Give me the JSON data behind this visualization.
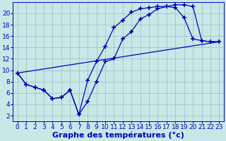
{
  "title": "Graphe des températures (°c)",
  "background_color": "#c8e8e8",
  "grid_color": "#a0c4c8",
  "line_color": "#0000bb",
  "marker": "+",
  "markersize": 4,
  "markeredgewidth": 1.2,
  "linewidth": 0.9,
  "xlim": [
    -0.5,
    23.5
  ],
  "ylim": [
    1,
    22
  ],
  "xticks": [
    0,
    1,
    2,
    3,
    4,
    5,
    6,
    7,
    8,
    9,
    10,
    11,
    12,
    13,
    14,
    15,
    16,
    17,
    18,
    19,
    20,
    21,
    22,
    23
  ],
  "yticks": [
    2,
    4,
    6,
    8,
    10,
    12,
    14,
    16,
    18,
    20
  ],
  "xlabel_fontsize": 8,
  "tick_fontsize": 6.5,
  "line1_x": [
    0,
    1,
    2,
    3,
    4,
    5,
    6,
    7,
    8,
    9,
    10,
    11,
    12,
    13,
    14,
    15,
    16,
    17,
    18,
    19,
    20,
    21,
    22,
    23
  ],
  "line1_y": [
    9.5,
    7.5,
    7.0,
    6.5,
    5.0,
    5.2,
    6.5,
    2.2,
    4.5,
    8.0,
    11.5,
    12.0,
    15.5,
    16.8,
    19.0,
    19.8,
    20.8,
    21.2,
    21.5,
    21.5,
    21.2,
    15.2,
    15.0,
    15.0
  ],
  "line2_x": [
    0,
    1,
    2,
    3,
    4,
    5,
    6,
    7,
    8,
    9,
    10,
    11,
    12,
    13,
    14,
    15,
    16,
    17,
    18,
    19,
    20,
    21,
    22,
    23
  ],
  "line2_y": [
    9.5,
    7.5,
    7.0,
    6.5,
    5.0,
    5.2,
    6.5,
    2.2,
    8.2,
    11.5,
    14.2,
    17.5,
    18.8,
    20.2,
    20.8,
    21.0,
    21.2,
    21.2,
    21.0,
    19.2,
    15.5,
    15.2,
    15.0,
    15.0
  ],
  "line3_x": [
    0,
    23
  ],
  "line3_y": [
    9.5,
    15.0
  ],
  "line3_marker": false
}
